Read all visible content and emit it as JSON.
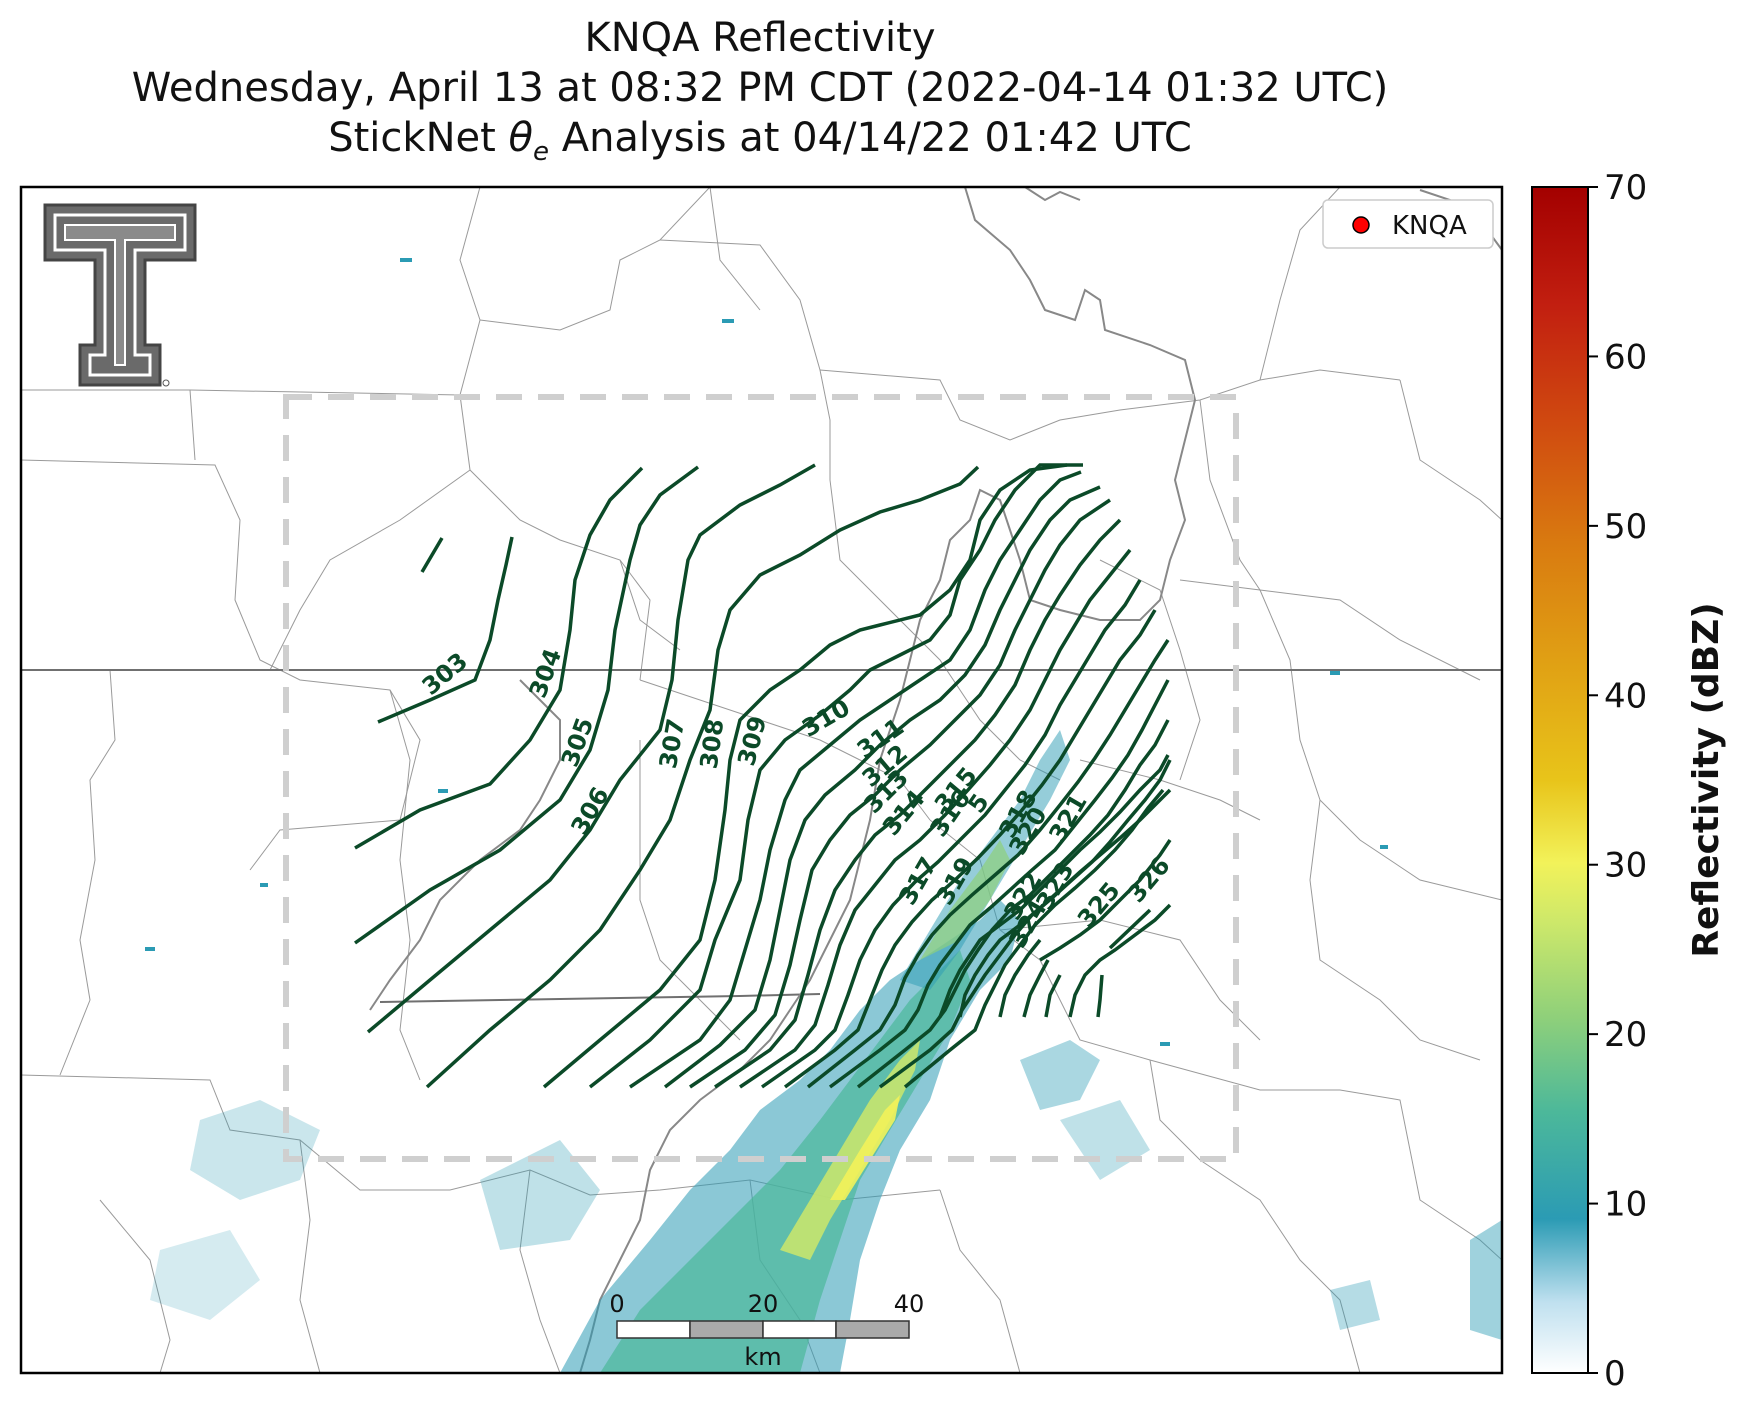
{
  "title": {
    "line1": "KNQA Reflectivity",
    "line2": "Wednesday, April 13 at 08:32 PM CDT (2022-04-14 01:32 UTC)",
    "line3": "StickNet θe Analysis at 04/14/22 01:42 UTC"
  },
  "legend": {
    "label": "KNQA",
    "marker_color": "#ff0000"
  },
  "colorbar": {
    "label": "Reflectivity (dBZ)",
    "ticks": [
      "0",
      "10",
      "20",
      "30",
      "40",
      "50",
      "60",
      "70"
    ]
  },
  "scale_bar": {
    "labels": [
      "0",
      "20",
      "40"
    ],
    "unit": "km"
  },
  "contours": {
    "color": "#0b4a28",
    "labels": [
      "303",
      "304",
      "305",
      "306",
      "307",
      "308",
      "309",
      "310",
      "311",
      "312",
      "313",
      "314",
      "315",
      "316",
      "5",
      "317",
      "318",
      "319",
      "320",
      "321",
      "322",
      "323",
      "324",
      "325",
      "326"
    ]
  },
  "logo": {
    "name": "Texas Tech Double T"
  }
}
